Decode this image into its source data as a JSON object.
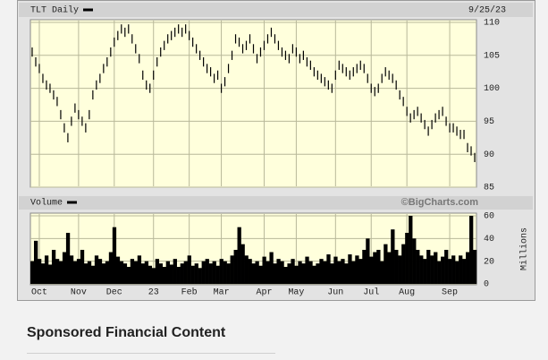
{
  "chart_data": {
    "type": "ohlc",
    "title": "TLT Daily",
    "date_label": "9/25/23",
    "watermark": "©BigCharts.com",
    "color": "#000000",
    "grid": true,
    "categories": [
      null,
      null,
      "Oct",
      null,
      null,
      null,
      null,
      null,
      null,
      null,
      null,
      null,
      null,
      "Nov",
      null,
      null,
      null,
      null,
      null,
      null,
      null,
      null,
      null,
      "Dec",
      null,
      null,
      null,
      null,
      null,
      null,
      null,
      null,
      null,
      null,
      "23",
      null,
      null,
      null,
      null,
      null,
      null,
      null,
      null,
      null,
      "Feb",
      null,
      null,
      null,
      null,
      null,
      null,
      null,
      null,
      "Mar",
      null,
      null,
      null,
      null,
      null,
      null,
      null,
      null,
      null,
      null,
      null,
      "Apr",
      null,
      null,
      null,
      null,
      null,
      null,
      null,
      null,
      "May",
      null,
      null,
      null,
      null,
      null,
      null,
      null,
      null,
      null,
      null,
      "Jun",
      null,
      null,
      null,
      null,
      null,
      null,
      null,
      null,
      null,
      "Jul",
      null,
      null,
      null,
      null,
      null,
      null,
      null,
      null,
      null,
      "Aug",
      null,
      null,
      null,
      null,
      null,
      null,
      null,
      null,
      null,
      null,
      null,
      "Sep",
      null,
      null,
      null,
      null,
      null,
      null,
      null
    ],
    "high": [
      106.2,
      104.7,
      103.7,
      102.2,
      101.2,
      100.7,
      99.7,
      98.7,
      96.7,
      94.7,
      93.2,
      95.7,
      97.7,
      96.7,
      95.7,
      94.7,
      96.7,
      99.7,
      101.2,
      102.2,
      103.7,
      104.7,
      106.2,
      107.7,
      108.7,
      109.7,
      109.2,
      109.7,
      108.2,
      106.7,
      105.2,
      102.7,
      101.2,
      100.7,
      102.7,
      104.7,
      106.2,
      107.2,
      108.2,
      108.7,
      109.2,
      109.7,
      109.2,
      109.7,
      108.7,
      107.7,
      106.7,
      105.7,
      104.7,
      103.7,
      103.2,
      102.2,
      102.7,
      100.7,
      101.7,
      103.7,
      105.7,
      108.2,
      107.7,
      106.7,
      107.2,
      108.2,
      106.7,
      105.2,
      106.2,
      107.2,
      108.2,
      109.2,
      108.2,
      107.2,
      106.2,
      105.7,
      105.2,
      106.7,
      106.2,
      105.2,
      105.7,
      104.7,
      104.2,
      103.2,
      102.7,
      102.2,
      101.7,
      101.2,
      100.7,
      102.7,
      104.2,
      103.7,
      103.2,
      102.7,
      103.2,
      103.7,
      104.2,
      103.7,
      102.2,
      100.7,
      100.2,
      100.7,
      102.2,
      103.2,
      102.7,
      102.2,
      101.2,
      99.7,
      98.7,
      97.2,
      96.2,
      96.7,
      97.2,
      96.2,
      95.2,
      94.2,
      95.2,
      96.2,
      96.7,
      97.2,
      95.7,
      94.7,
      94.7,
      94.2,
      93.7,
      93.7,
      91.7,
      91.2,
      90.2
    ],
    "low": [
      104.8,
      103.3,
      102.3,
      100.8,
      99.8,
      99.3,
      98.3,
      97.3,
      95.3,
      93.3,
      91.8,
      94.3,
      96.3,
      95.3,
      94.3,
      93.3,
      95.3,
      98.3,
      99.8,
      100.8,
      102.3,
      103.3,
      104.8,
      106.3,
      107.3,
      108.3,
      107.8,
      108.3,
      106.8,
      105.3,
      103.8,
      101.3,
      99.8,
      99.3,
      101.3,
      103.3,
      104.8,
      105.8,
      106.8,
      107.3,
      107.8,
      108.3,
      107.8,
      108.3,
      107.3,
      106.3,
      105.3,
      104.3,
      103.3,
      102.3,
      101.8,
      100.8,
      101.3,
      99.3,
      100.3,
      102.3,
      104.3,
      106.8,
      106.3,
      105.3,
      105.8,
      106.8,
      105.3,
      103.8,
      104.8,
      105.8,
      106.8,
      107.8,
      106.8,
      105.8,
      104.8,
      104.3,
      103.8,
      105.3,
      104.8,
      103.8,
      104.3,
      103.3,
      102.8,
      101.8,
      101.3,
      100.8,
      100.3,
      99.8,
      99.3,
      101.3,
      102.8,
      102.3,
      101.8,
      101.3,
      101.8,
      102.3,
      102.8,
      102.3,
      100.8,
      99.3,
      98.8,
      99.3,
      100.8,
      101.8,
      101.3,
      100.8,
      99.8,
      98.3,
      97.3,
      95.8,
      94.8,
      95.3,
      95.8,
      94.8,
      93.8,
      92.8,
      93.8,
      94.8,
      95.3,
      95.8,
      94.3,
      93.3,
      93.3,
      92.8,
      92.3,
      92.3,
      90.3,
      89.8,
      88.8
    ],
    "ylim": [
      85,
      110
    ],
    "yticks": [
      85,
      90,
      95,
      100,
      105,
      110
    ],
    "volume": {
      "title": "Volume",
      "ylabel": "Millions",
      "color": "#000000",
      "ylim": [
        0,
        60
      ],
      "yticks": [
        0,
        20,
        40,
        60
      ],
      "values": [
        20,
        38,
        22,
        18,
        25,
        17,
        30,
        22,
        20,
        28,
        45,
        25,
        20,
        22,
        30,
        18,
        20,
        16,
        25,
        22,
        18,
        20,
        28,
        50,
        24,
        20,
        18,
        15,
        22,
        20,
        25,
        18,
        20,
        16,
        14,
        22,
        18,
        15,
        20,
        17,
        22,
        15,
        18,
        20,
        25,
        16,
        18,
        14,
        20,
        22,
        18,
        20,
        16,
        22,
        20,
        18,
        25,
        30,
        50,
        35,
        25,
        22,
        18,
        20,
        16,
        24,
        20,
        28,
        18,
        22,
        20,
        15,
        18,
        22,
        16,
        20,
        18,
        24,
        20,
        16,
        18,
        22,
        20,
        26,
        18,
        24,
        20,
        22,
        18,
        26,
        20,
        25,
        22,
        30,
        40,
        24,
        28,
        30,
        20,
        35,
        28,
        48,
        30,
        25,
        35,
        45,
        60,
        40,
        30,
        25,
        22,
        30,
        25,
        28,
        20,
        24,
        30,
        22,
        25,
        20,
        25,
        22,
        28,
        60,
        30
      ]
    }
  },
  "sponsored": {
    "heading": "Sponsored Financial Content"
  }
}
